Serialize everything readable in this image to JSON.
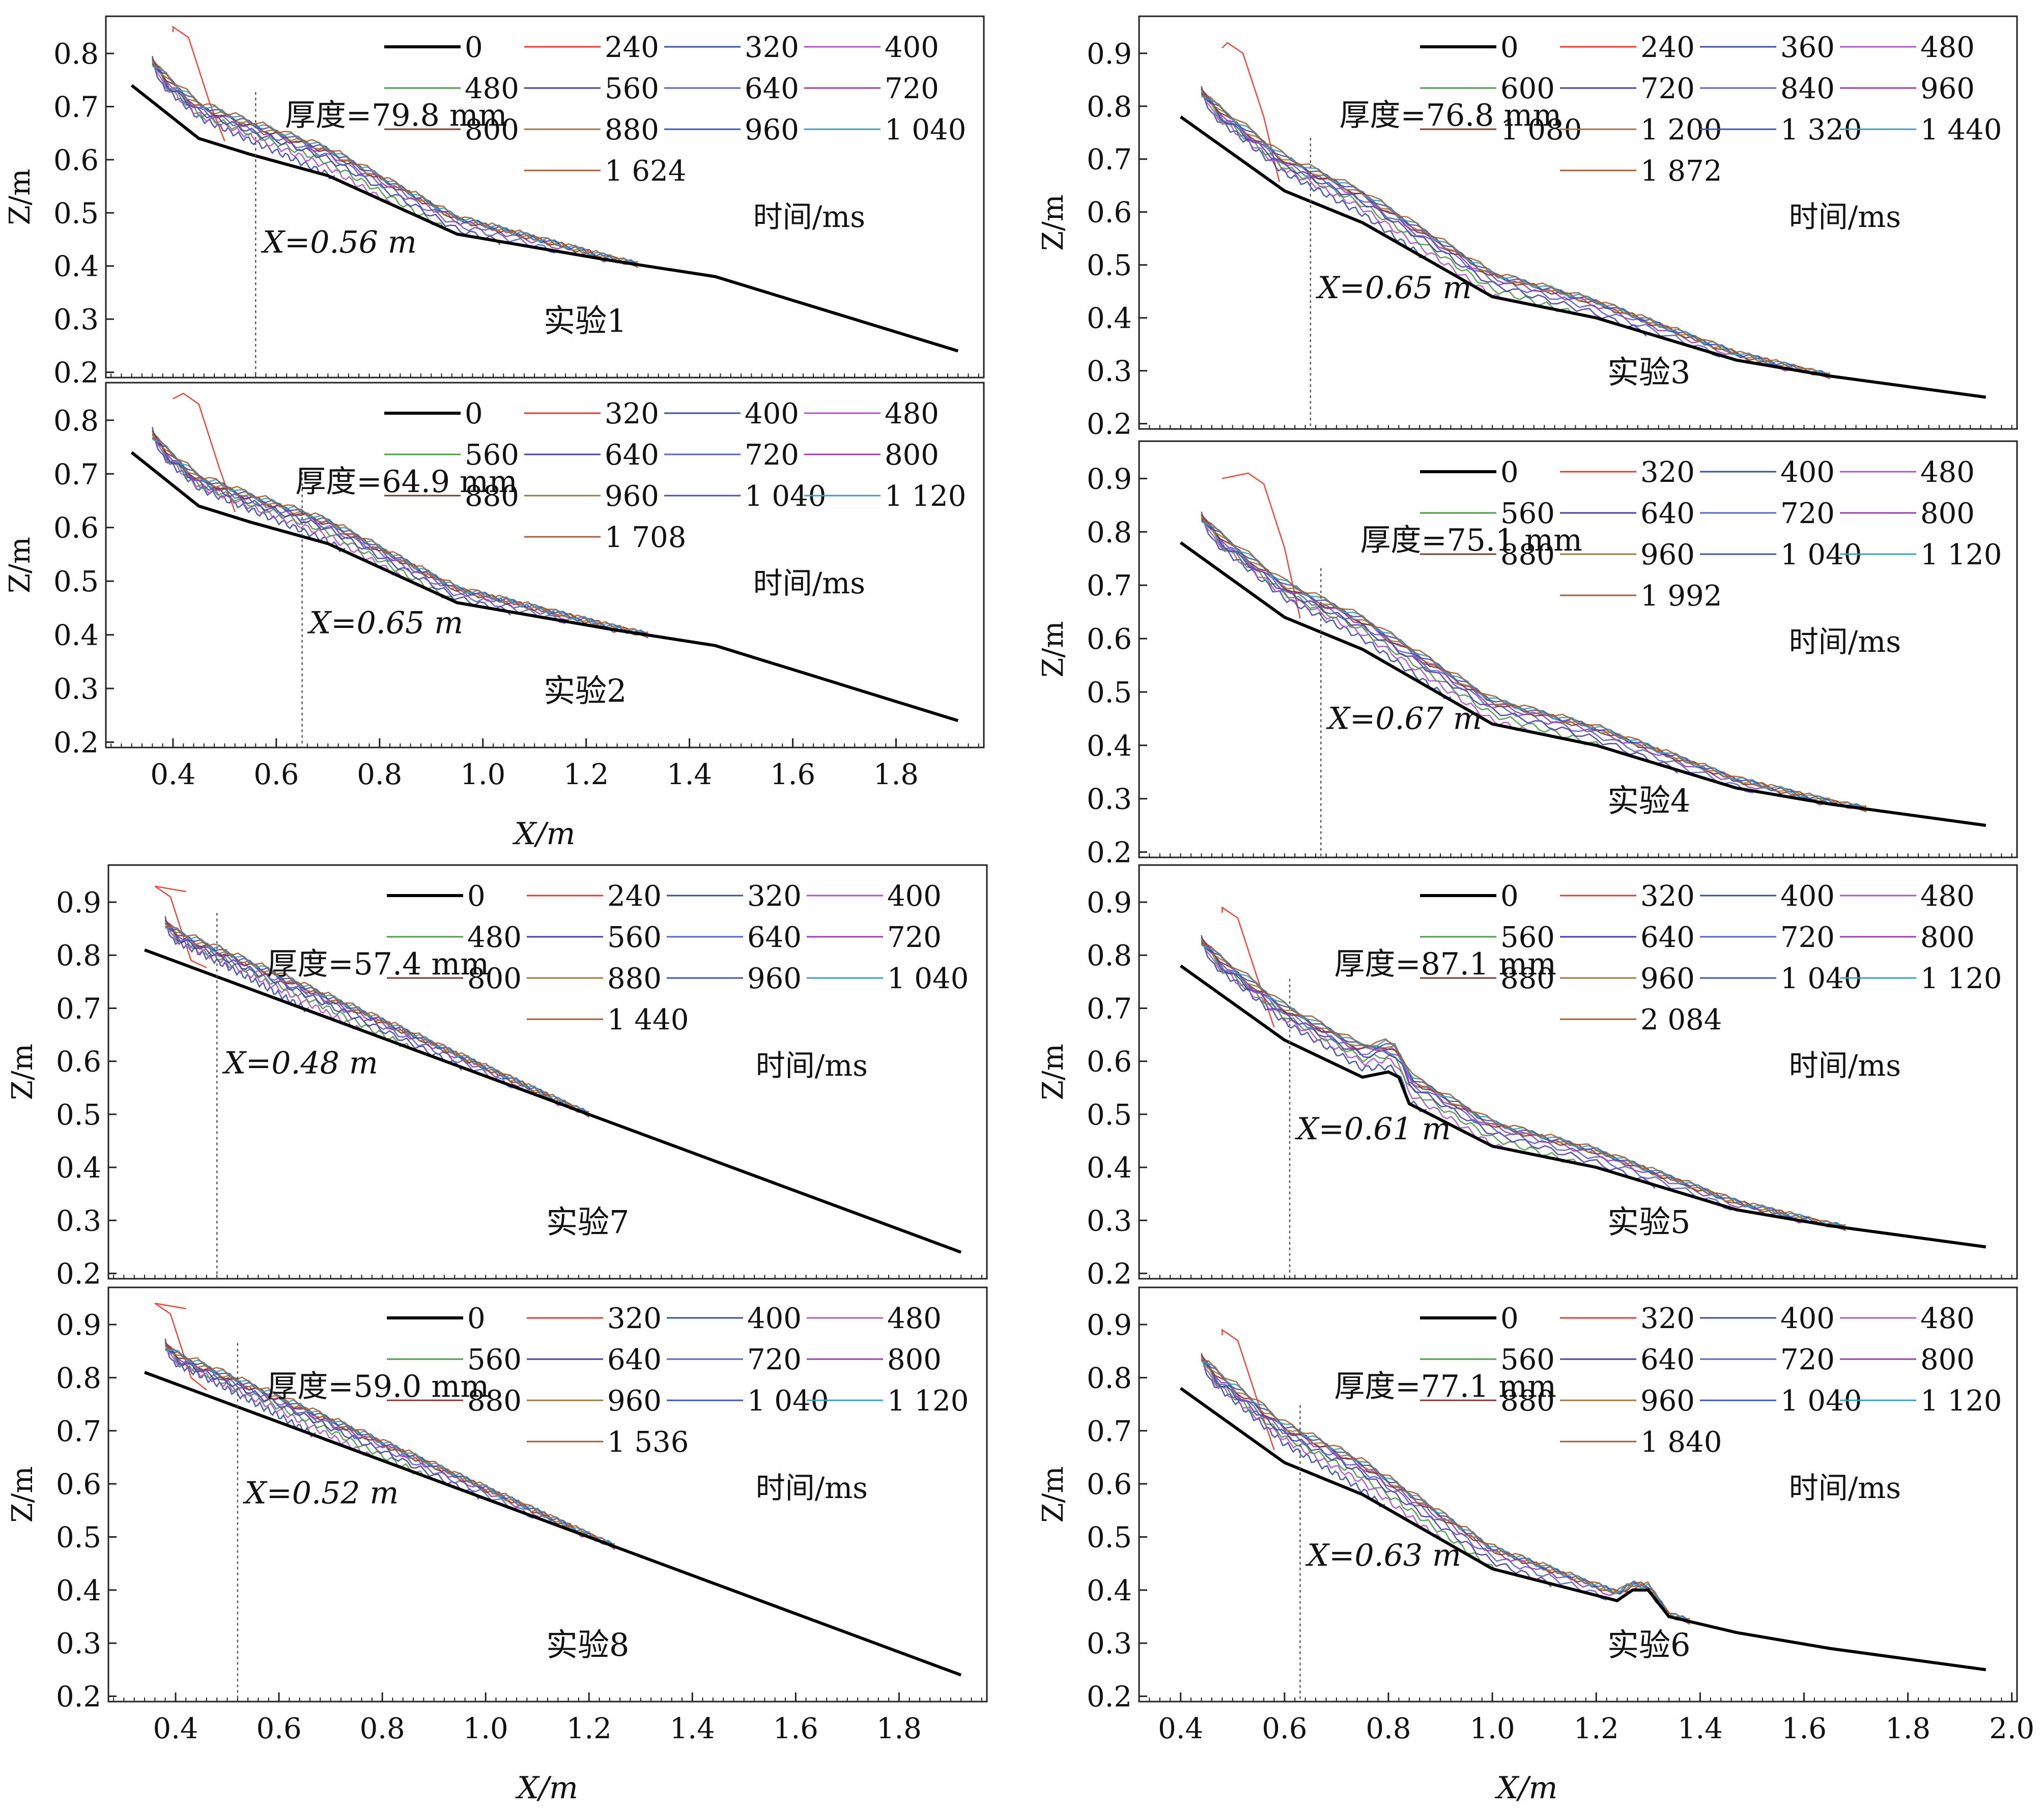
{
  "colors": {
    "axis": "#222222",
    "bed": "#000000",
    "guide": "#555555",
    "palette": [
      "#000000",
      "#e8392e",
      "#3b4ba8",
      "#b154c6",
      "#4e9a4a",
      "#4a3fa0",
      "#5a62c8",
      "#9a3fae",
      "#7b3b30",
      "#9a7a40",
      "#3f54b8",
      "#3c9fc0",
      "#a0603a"
    ]
  },
  "axis_labels": {
    "x": "X/m",
    "y": "Z/m"
  },
  "time_label": "时间/ms",
  "chart_data": [
    {
      "type": "line",
      "experiment": "实验1",
      "thickness": "厚度=79.8 mm",
      "x_marker": 0.56,
      "x_marker_label": "X=0.56 m",
      "xlim": [
        0.27,
        1.97
      ],
      "ylim": [
        0.19,
        0.87
      ],
      "yticks": [
        0.2,
        0.3,
        0.4,
        0.5,
        0.6,
        0.7,
        0.8
      ],
      "series": [
        "0",
        "240",
        "320",
        "400",
        "480",
        "560",
        "640",
        "720",
        "800",
        "880",
        "960",
        "1 040",
        "1 624"
      ],
      "bed": [
        [
          0.32,
          0.74
        ],
        [
          0.45,
          0.64
        ],
        [
          0.55,
          0.61
        ],
        [
          0.7,
          0.57
        ],
        [
          0.95,
          0.46
        ],
        [
          1.25,
          0.41
        ],
        [
          1.45,
          0.38
        ],
        [
          1.92,
          0.24
        ]
      ],
      "peak": [
        0.4,
        0.85
      ],
      "end_x": 1.3,
      "offset": 0.06,
      "bump": null
    },
    {
      "type": "line",
      "experiment": "实验2",
      "thickness": "厚度=64.9 mm",
      "x_marker": 0.65,
      "x_marker_label": "X=0.65 m",
      "xlim": [
        0.27,
        1.97
      ],
      "ylim": [
        0.19,
        0.87
      ],
      "xticks": [
        0.4,
        0.6,
        0.8,
        1.0,
        1.2,
        1.4,
        1.6,
        1.8
      ],
      "yticks": [
        0.2,
        0.3,
        0.4,
        0.5,
        0.6,
        0.7,
        0.8
      ],
      "series": [
        "0",
        "320",
        "400",
        "480",
        "560",
        "640",
        "720",
        "800",
        "880",
        "960",
        "1 040",
        "1 120",
        "1 708"
      ],
      "bed": [
        [
          0.32,
          0.74
        ],
        [
          0.45,
          0.64
        ],
        [
          0.55,
          0.61
        ],
        [
          0.7,
          0.57
        ],
        [
          0.95,
          0.46
        ],
        [
          1.25,
          0.41
        ],
        [
          1.45,
          0.38
        ],
        [
          1.92,
          0.24
        ]
      ],
      "peak": [
        0.42,
        0.85
      ],
      "end_x": 1.32,
      "offset": 0.05,
      "bump": null
    },
    {
      "type": "line",
      "experiment": "实验7",
      "thickness": "厚度=57.4 mm",
      "x_marker": 0.48,
      "x_marker_label": "X=0.48 m",
      "xlim": [
        0.27,
        1.97
      ],
      "ylim": [
        0.19,
        0.97
      ],
      "yticks": [
        0.2,
        0.3,
        0.4,
        0.5,
        0.6,
        0.7,
        0.8,
        0.9
      ],
      "series": [
        "0",
        "240",
        "320",
        "400",
        "480",
        "560",
        "640",
        "720",
        "800",
        "880",
        "960",
        "1 040",
        "1 440"
      ],
      "bed": [
        [
          0.34,
          0.81
        ],
        [
          1.92,
          0.24
        ]
      ],
      "peak": [
        0.36,
        0.93
      ],
      "end_x": 1.2,
      "offset": 0.05,
      "bump": null
    },
    {
      "type": "line",
      "experiment": "实验8",
      "thickness": "厚度=59.0 mm",
      "x_marker": 0.52,
      "x_marker_label": "X=0.52 m",
      "xlim": [
        0.27,
        1.97
      ],
      "ylim": [
        0.19,
        0.97
      ],
      "xticks": [
        0.4,
        0.6,
        0.8,
        1.0,
        1.2,
        1.4,
        1.6,
        1.8
      ],
      "yticks": [
        0.2,
        0.3,
        0.4,
        0.5,
        0.6,
        0.7,
        0.8,
        0.9
      ],
      "series": [
        "0",
        "320",
        "400",
        "480",
        "560",
        "640",
        "720",
        "800",
        "880",
        "960",
        "1 040",
        "1 120",
        "1 536"
      ],
      "bed": [
        [
          0.34,
          0.81
        ],
        [
          1.92,
          0.24
        ]
      ],
      "peak": [
        0.36,
        0.94
      ],
      "end_x": 1.25,
      "offset": 0.05,
      "bump": null
    },
    {
      "type": "line",
      "experiment": "实验3",
      "thickness": "厚度=76.8 mm",
      "x_marker": 0.65,
      "x_marker_label": "X=0.65 m",
      "xlim": [
        0.32,
        2.01
      ],
      "ylim": [
        0.19,
        0.97
      ],
      "yticks": [
        0.2,
        0.3,
        0.4,
        0.5,
        0.6,
        0.7,
        0.8,
        0.9
      ],
      "series": [
        "0",
        "240",
        "360",
        "480",
        "600",
        "720",
        "840",
        "960",
        "1 080",
        "1 200",
        "1 320",
        "1 440",
        "1 872"
      ],
      "bed": [
        [
          0.4,
          0.78
        ],
        [
          0.6,
          0.64
        ],
        [
          0.75,
          0.58
        ],
        [
          1.0,
          0.44
        ],
        [
          1.2,
          0.4
        ],
        [
          1.47,
          0.32
        ],
        [
          1.65,
          0.29
        ],
        [
          1.95,
          0.25
        ]
      ],
      "peak": [
        0.49,
        0.92
      ],
      "end_x": 1.65,
      "offset": 0.06,
      "bump": null
    },
    {
      "type": "line",
      "experiment": "实验4",
      "thickness": "厚度=75.1 mm",
      "x_marker": 0.67,
      "x_marker_label": "X=0.67 m",
      "xlim": [
        0.32,
        2.01
      ],
      "ylim": [
        0.19,
        0.97
      ],
      "yticks": [
        0.2,
        0.3,
        0.4,
        0.5,
        0.6,
        0.7,
        0.8,
        0.9
      ],
      "series": [
        "0",
        "320",
        "400",
        "480",
        "560",
        "640",
        "720",
        "800",
        "880",
        "960",
        "1 040",
        "1 120",
        "1 992"
      ],
      "bed": [
        [
          0.4,
          0.78
        ],
        [
          0.6,
          0.64
        ],
        [
          0.75,
          0.58
        ],
        [
          1.0,
          0.44
        ],
        [
          1.2,
          0.4
        ],
        [
          1.47,
          0.32
        ],
        [
          1.65,
          0.29
        ],
        [
          1.95,
          0.25
        ]
      ],
      "peak": [
        0.53,
        0.91
      ],
      "end_x": 1.72,
      "offset": 0.06,
      "bump": null
    },
    {
      "type": "line",
      "experiment": "实验5",
      "thickness": "厚度=87.1 mm",
      "x_marker": 0.61,
      "x_marker_label": "X=0.61 m",
      "xlim": [
        0.32,
        2.01
      ],
      "ylim": [
        0.19,
        0.97
      ],
      "yticks": [
        0.2,
        0.3,
        0.4,
        0.5,
        0.6,
        0.7,
        0.8,
        0.9
      ],
      "series": [
        "0",
        "320",
        "400",
        "480",
        "560",
        "640",
        "720",
        "800",
        "880",
        "960",
        "1 040",
        "1 120",
        "2 084"
      ],
      "bed": [
        [
          0.4,
          0.78
        ],
        [
          0.6,
          0.64
        ],
        [
          0.75,
          0.57
        ],
        [
          0.8,
          0.58
        ],
        [
          0.82,
          0.57
        ],
        [
          0.84,
          0.52
        ],
        [
          1.0,
          0.44
        ],
        [
          1.2,
          0.4
        ],
        [
          1.47,
          0.32
        ],
        [
          1.65,
          0.29
        ],
        [
          1.95,
          0.25
        ]
      ],
      "peak": [
        0.48,
        0.89
      ],
      "end_x": 1.68,
      "offset": 0.06,
      "bump": [
        0.8,
        0.58
      ]
    },
    {
      "type": "line",
      "experiment": "实验6",
      "thickness": "厚度=77.1 mm",
      "x_marker": 0.63,
      "x_marker_label": "X=0.63 m",
      "xlim": [
        0.32,
        2.01
      ],
      "ylim": [
        0.19,
        0.97
      ],
      "xticks": [
        0.4,
        0.6,
        0.8,
        1.0,
        1.2,
        1.4,
        1.6,
        1.8,
        2.0
      ],
      "yticks": [
        0.2,
        0.3,
        0.4,
        0.5,
        0.6,
        0.7,
        0.8,
        0.9
      ],
      "series": [
        "0",
        "320",
        "400",
        "480",
        "560",
        "640",
        "720",
        "800",
        "880",
        "960",
        "1 040",
        "1 120",
        "1 840"
      ],
      "bed": [
        [
          0.4,
          0.78
        ],
        [
          0.6,
          0.64
        ],
        [
          0.75,
          0.58
        ],
        [
          1.0,
          0.44
        ],
        [
          1.24,
          0.38
        ],
        [
          1.27,
          0.4
        ],
        [
          1.3,
          0.4
        ],
        [
          1.34,
          0.35
        ],
        [
          1.47,
          0.32
        ],
        [
          1.65,
          0.29
        ],
        [
          1.95,
          0.25
        ]
      ],
      "peak": [
        0.48,
        0.89
      ],
      "end_x": 1.38,
      "offset": 0.07,
      "bump": [
        1.29,
        0.4
      ]
    }
  ]
}
